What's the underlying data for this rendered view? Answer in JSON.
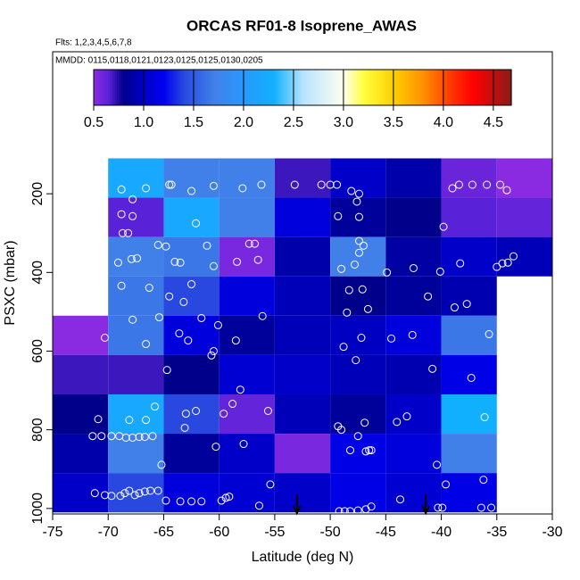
{
  "chart_data": {
    "type": "heatmap-scatter",
    "title": "ORCAS RF01-8 Isoprene_AWAS",
    "subtitle": "Flts: 1,2,3,4,5,6,7,8",
    "annotation": "MMDD: 0115,0118,0121,0123,0125,0125,0130,0205",
    "xlabel": "Latitude (deg N)",
    "ylabel": "PSXC (mbar)",
    "xlim": [
      -75,
      -30
    ],
    "xticks": [
      -75,
      -70,
      -65,
      -60,
      -55,
      -50,
      -45,
      -40,
      -35,
      -30
    ],
    "ylim": [
      1014,
      -161
    ],
    "yticks": [
      200,
      400,
      600,
      800,
      1000
    ],
    "clim": [
      0.5,
      4.68
    ],
    "cticks": [
      0.5,
      {
        "value": 1,
        "label": "1.0"
      },
      1.5,
      {
        "value": 2,
        "label": "2.0"
      },
      2.5,
      {
        "value": 3,
        "label": "3.0"
      },
      3.5,
      {
        "value": 4,
        "label": "4.0"
      },
      4.5
    ],
    "colorscale": [
      [
        0.5,
        "#8a2be2"
      ],
      [
        0.65,
        "#5a22d8"
      ],
      [
        0.8,
        "#00008b"
      ],
      [
        1.0,
        "#0000c8"
      ],
      [
        1.2,
        "#0000f0"
      ],
      [
        1.4,
        "#2848e0"
      ],
      [
        1.7,
        "#4080e8"
      ],
      [
        2.0,
        "#2898ff"
      ],
      [
        2.3,
        "#10b0ff"
      ],
      [
        2.6,
        "#b8e4ff"
      ],
      [
        3.0,
        "#fffff0"
      ],
      [
        3.2,
        "#ffff40"
      ],
      [
        3.5,
        "#ffd000"
      ],
      [
        3.8,
        "#ff9000"
      ],
      [
        4.1,
        "#ff3000"
      ],
      [
        4.3,
        "#ff0000"
      ],
      [
        4.68,
        "#8b1a1a"
      ]
    ],
    "cells": {
      "lat_edges": [
        -75,
        -70,
        -65,
        -60,
        -55,
        -50,
        -45,
        -40,
        -35,
        -30
      ],
      "p_edges": [
        110,
        210,
        310,
        410,
        510,
        610,
        710,
        810,
        910,
        1010
      ],
      "values": [
        [
          null,
          2.2,
          1.7,
          1.7,
          0.7,
          1.0,
          0.9,
          0.6,
          0.5
        ],
        [
          null,
          0.65,
          2.2,
          1.7,
          1.1,
          0.85,
          0.8,
          0.65,
          0.62
        ],
        [
          null,
          1.7,
          1.65,
          0.55,
          0.9,
          1.7,
          0.88,
          1.0,
          0.95
        ],
        [
          null,
          1.65,
          1.4,
          1.1,
          0.95,
          0.8,
          0.85,
          0.92,
          null
        ],
        [
          0.5,
          1.65,
          1.1,
          0.85,
          0.95,
          0.98,
          1.1,
          1.65,
          null
        ],
        [
          0.7,
          0.7,
          0.8,
          1.05,
          1.0,
          0.95,
          0.92,
          1.15,
          null
        ],
        [
          0.8,
          2.2,
          1.4,
          0.62,
          0.95,
          0.85,
          1.0,
          2.3,
          null
        ],
        [
          0.9,
          1.7,
          0.85,
          1.0,
          0.55,
          1.15,
          1.1,
          1.7,
          null
        ],
        [
          1.0,
          1.4,
          1.1,
          1.05,
          1.0,
          1.15,
          1.05,
          1.15,
          null
        ]
      ]
    },
    "points": {
      "color": "#ffffff",
      "lat": [
        -68.8,
        -67.8,
        -66.6,
        -64.5,
        -64.3,
        -62.5,
        -60.5,
        -57.9,
        -56.2,
        -53.2,
        -50.8,
        -50.0,
        -49.4,
        -48.1,
        -47.4,
        -39.0,
        -38.4,
        -37.2,
        -35.9,
        -34.7,
        -34.1,
        -68.8,
        -67.8,
        -68.7,
        -68.2,
        -62.1,
        -49.3,
        -47.4,
        -47.6,
        -39.8,
        -69.1,
        -67.9,
        -67.4,
        -65.5,
        -64.8,
        -64.0,
        -63.5,
        -61.1,
        -60.5,
        -57.3,
        -56.8,
        -56.5,
        -58.4,
        -49.0,
        -47.8,
        -47.4,
        -47.4,
        -47.0,
        -44.9,
        -42.5,
        -40.1,
        -38.3,
        -35.0,
        -34.5,
        -34.0,
        -33.5,
        -68.8,
        -66.3,
        -64.5,
        -62.5,
        -63.2,
        -48.3,
        -47.1,
        -46.6,
        -48.5,
        -41.2,
        -38.8,
        -37.7,
        -70.3,
        -67.8,
        -66.6,
        -65.4,
        -63.6,
        -62.8,
        -61.6,
        -60.1,
        -58.5,
        -56.1,
        -48.8,
        -47.2,
        -44.5,
        -42.6,
        -35.7,
        -60.5,
        -60.7,
        -64.7,
        -58.1,
        -47.7,
        -40.8,
        -37.3,
        -70.9,
        -68.1,
        -66.6,
        -65.8,
        -63.0,
        -62.1,
        -59.6,
        -58.8,
        -55.6,
        -49.3,
        -46.9,
        -44.0,
        -43.1,
        -36.1,
        -71.4,
        -70.6,
        -69.7,
        -69.0,
        -68.4,
        -67.8,
        -67.2,
        -66.7,
        -66.0,
        -65.2,
        -63.1,
        -60.3,
        -57.8,
        -49.0,
        -48.2,
        -47.5,
        -46.8,
        -46.5,
        -46.3,
        -40.4,
        -71.2,
        -70.3,
        -69.7,
        -68.9,
        -68.5,
        -68.1,
        -67.6,
        -67.2,
        -66.7,
        -66.2,
        -65.5,
        -64.8,
        -63.5,
        -62.5,
        -61.6,
        -59.8,
        -59.4,
        -59.1,
        -56.4,
        -55.4,
        -49.2,
        -48.7,
        -48.2,
        -47.5,
        -46.8,
        -46.3,
        -43.7,
        -40.3,
        -39.9,
        -39.6,
        -36.4,
        -35.5,
        -36.2
      ],
      "pressure": [
        189,
        214,
        186,
        177,
        177,
        193,
        180,
        186,
        177,
        177,
        177,
        177,
        177,
        193,
        200,
        186,
        177,
        177,
        177,
        177,
        191,
        252,
        257,
        300,
        300,
        275,
        257,
        259,
        220,
        284,
        375,
        366,
        364,
        330,
        334,
        373,
        375,
        332,
        384,
        327,
        327,
        368,
        373,
        391,
        380,
        350,
        320,
        332,
        400,
        389,
        398,
        377,
        386,
        377,
        375,
        359,
        434,
        439,
        461,
        430,
        475,
        445,
        443,
        493,
        502,
        461,
        489,
        480,
        566,
        520,
        582,
        514,
        555,
        573,
        516,
        534,
        573,
        511,
        589,
        566,
        568,
        559,
        557,
        600,
        611,
        648,
        698,
        623,
        645,
        668,
        773,
        775,
        775,
        741,
        759,
        752,
        759,
        734,
        752,
        791,
        782,
        780,
        766,
        768,
        816,
        816,
        816,
        816,
        820,
        820,
        818,
        818,
        816,
        889,
        795,
        843,
        836,
        800,
        852,
        816,
        855,
        852,
        852,
        889,
        961,
        966,
        968,
        968,
        961,
        955,
        966,
        961,
        957,
        955,
        955,
        980,
        982,
        982,
        982,
        980,
        973,
        970,
        993,
        939,
        1007,
        1007,
        1007,
        1005,
        1002,
        995,
        977,
        998,
        998,
        939,
        998,
        998,
        927
      ]
    },
    "arrows": {
      "color": "#000000",
      "lat": [
        -53.0,
        -41.4
      ]
    }
  }
}
